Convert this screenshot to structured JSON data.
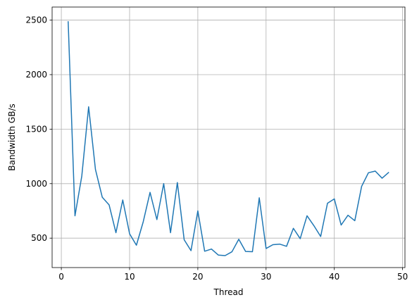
{
  "chart_data": {
    "type": "line",
    "title": "",
    "xlabel": "Thread",
    "ylabel": "Bandwidth GB/s",
    "xlim": [
      -1.35,
      50.35
    ],
    "ylim": [
      230,
      2620
    ],
    "xticks": [
      0,
      10,
      20,
      30,
      40,
      50
    ],
    "yticks": [
      500,
      1000,
      1500,
      2000,
      2500
    ],
    "grid": true,
    "legend": "none",
    "series": [
      {
        "color": "#1f77b4",
        "x": [
          1,
          2,
          3,
          4,
          5,
          6,
          7,
          8,
          9,
          10,
          11,
          12,
          13,
          14,
          15,
          16,
          17,
          18,
          19,
          20,
          21,
          22,
          23,
          24,
          25,
          26,
          27,
          28,
          29,
          30,
          31,
          32,
          33,
          34,
          35,
          36,
          37,
          38,
          39,
          40,
          41,
          42,
          43,
          44,
          45,
          46,
          47,
          48
        ],
        "y": [
          2490,
          705,
          1070,
          1705,
          1130,
          875,
          805,
          550,
          850,
          540,
          435,
          650,
          920,
          670,
          1000,
          550,
          1010,
          485,
          385,
          750,
          380,
          400,
          345,
          340,
          375,
          490,
          378,
          375,
          870,
          405,
          440,
          445,
          425,
          590,
          495,
          705,
          615,
          515,
          820,
          860,
          620,
          710,
          660,
          975,
          1100,
          1115,
          1050,
          1105
        ]
      }
    ]
  }
}
